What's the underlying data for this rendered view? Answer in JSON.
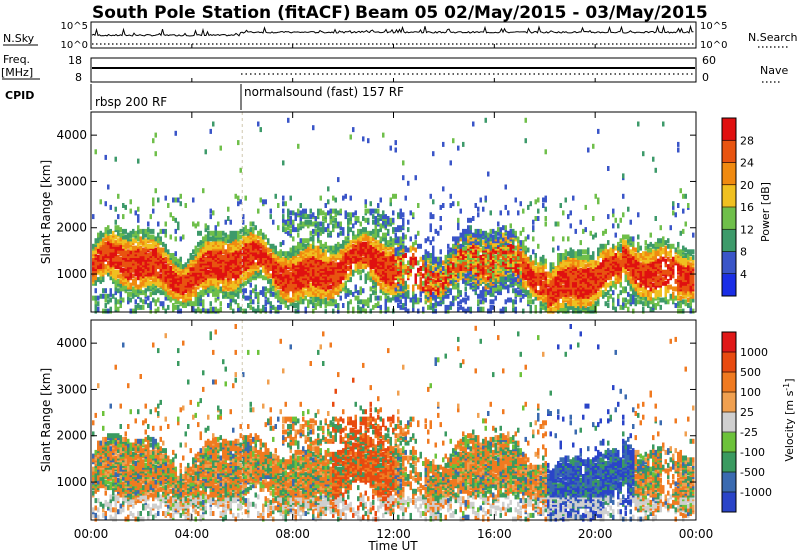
{
  "header": {
    "station": "South Pole Station (fitACF)",
    "beam_dates": "Beam 05 02/May/2015 - 03/May/2015"
  },
  "top_panels": {
    "nsky_label": "N.Sky",
    "nsky_ticks": [
      "10^5",
      "10^0"
    ],
    "nsearch_label": "N.Search",
    "nsearch_ticks": [
      "10^5",
      "10^0"
    ],
    "freq_label_line1": "Freq.",
    "freq_label_line2": "[MHz]",
    "freq_ticks": [
      "18",
      "8"
    ],
    "nave_label": "Nave",
    "nave_ticks": [
      "60",
      "0"
    ],
    "cpid_label": "CPID",
    "cpid_segments": [
      {
        "name": "rbsp 200 RF",
        "start_hour": 0
      },
      {
        "name": "normalsound (fast) 157 RF",
        "start_hour": 6
      }
    ]
  },
  "colors": {
    "power_scale": [
      "#1a2ee6",
      "#3a55c8",
      "#3d9a6a",
      "#6fbf4a",
      "#f0c020",
      "#f08a10",
      "#e85410",
      "#e01010"
    ],
    "velocity_scale": [
      "#2a44c8",
      "#3a6ab0",
      "#3a9a60",
      "#6cc23a",
      "#cfcfcf",
      "#f0a050",
      "#f07a20",
      "#e84a10",
      "#e01818"
    ],
    "ground_scatter": "#a0a0a0"
  },
  "chart_data": [
    {
      "type": "heatmap",
      "name": "power",
      "xlabel": "",
      "ylabel": "Slant Range [km]",
      "xlim_hours": [
        0,
        24
      ],
      "ylim_km": [
        180,
        4500
      ],
      "yticks": [
        "1000",
        "2000",
        "3000",
        "4000"
      ],
      "colorbar": {
        "label": "Power [dB]",
        "ticks": [
          "4",
          "8",
          "12",
          "16",
          "20",
          "24",
          "28"
        ],
        "range": [
          0,
          30
        ]
      }
    },
    {
      "type": "heatmap",
      "name": "velocity",
      "xlabel": "Time UT",
      "ylabel": "Slant Range [km]",
      "xlim_hours": [
        0,
        24
      ],
      "ylim_km": [
        180,
        4500
      ],
      "xticks": [
        "00:00",
        "04:00",
        "08:00",
        "12:00",
        "16:00",
        "20:00",
        "00:00"
      ],
      "yticks": [
        "1000",
        "2000",
        "3000",
        "4000"
      ],
      "colorbar": {
        "label": "Velocity [m s^-1]",
        "ticks": [
          "1000",
          "500",
          "100",
          "25",
          "-25",
          "-100",
          "-500",
          "-1000"
        ],
        "range": [
          -1000,
          1000
        ]
      }
    }
  ]
}
